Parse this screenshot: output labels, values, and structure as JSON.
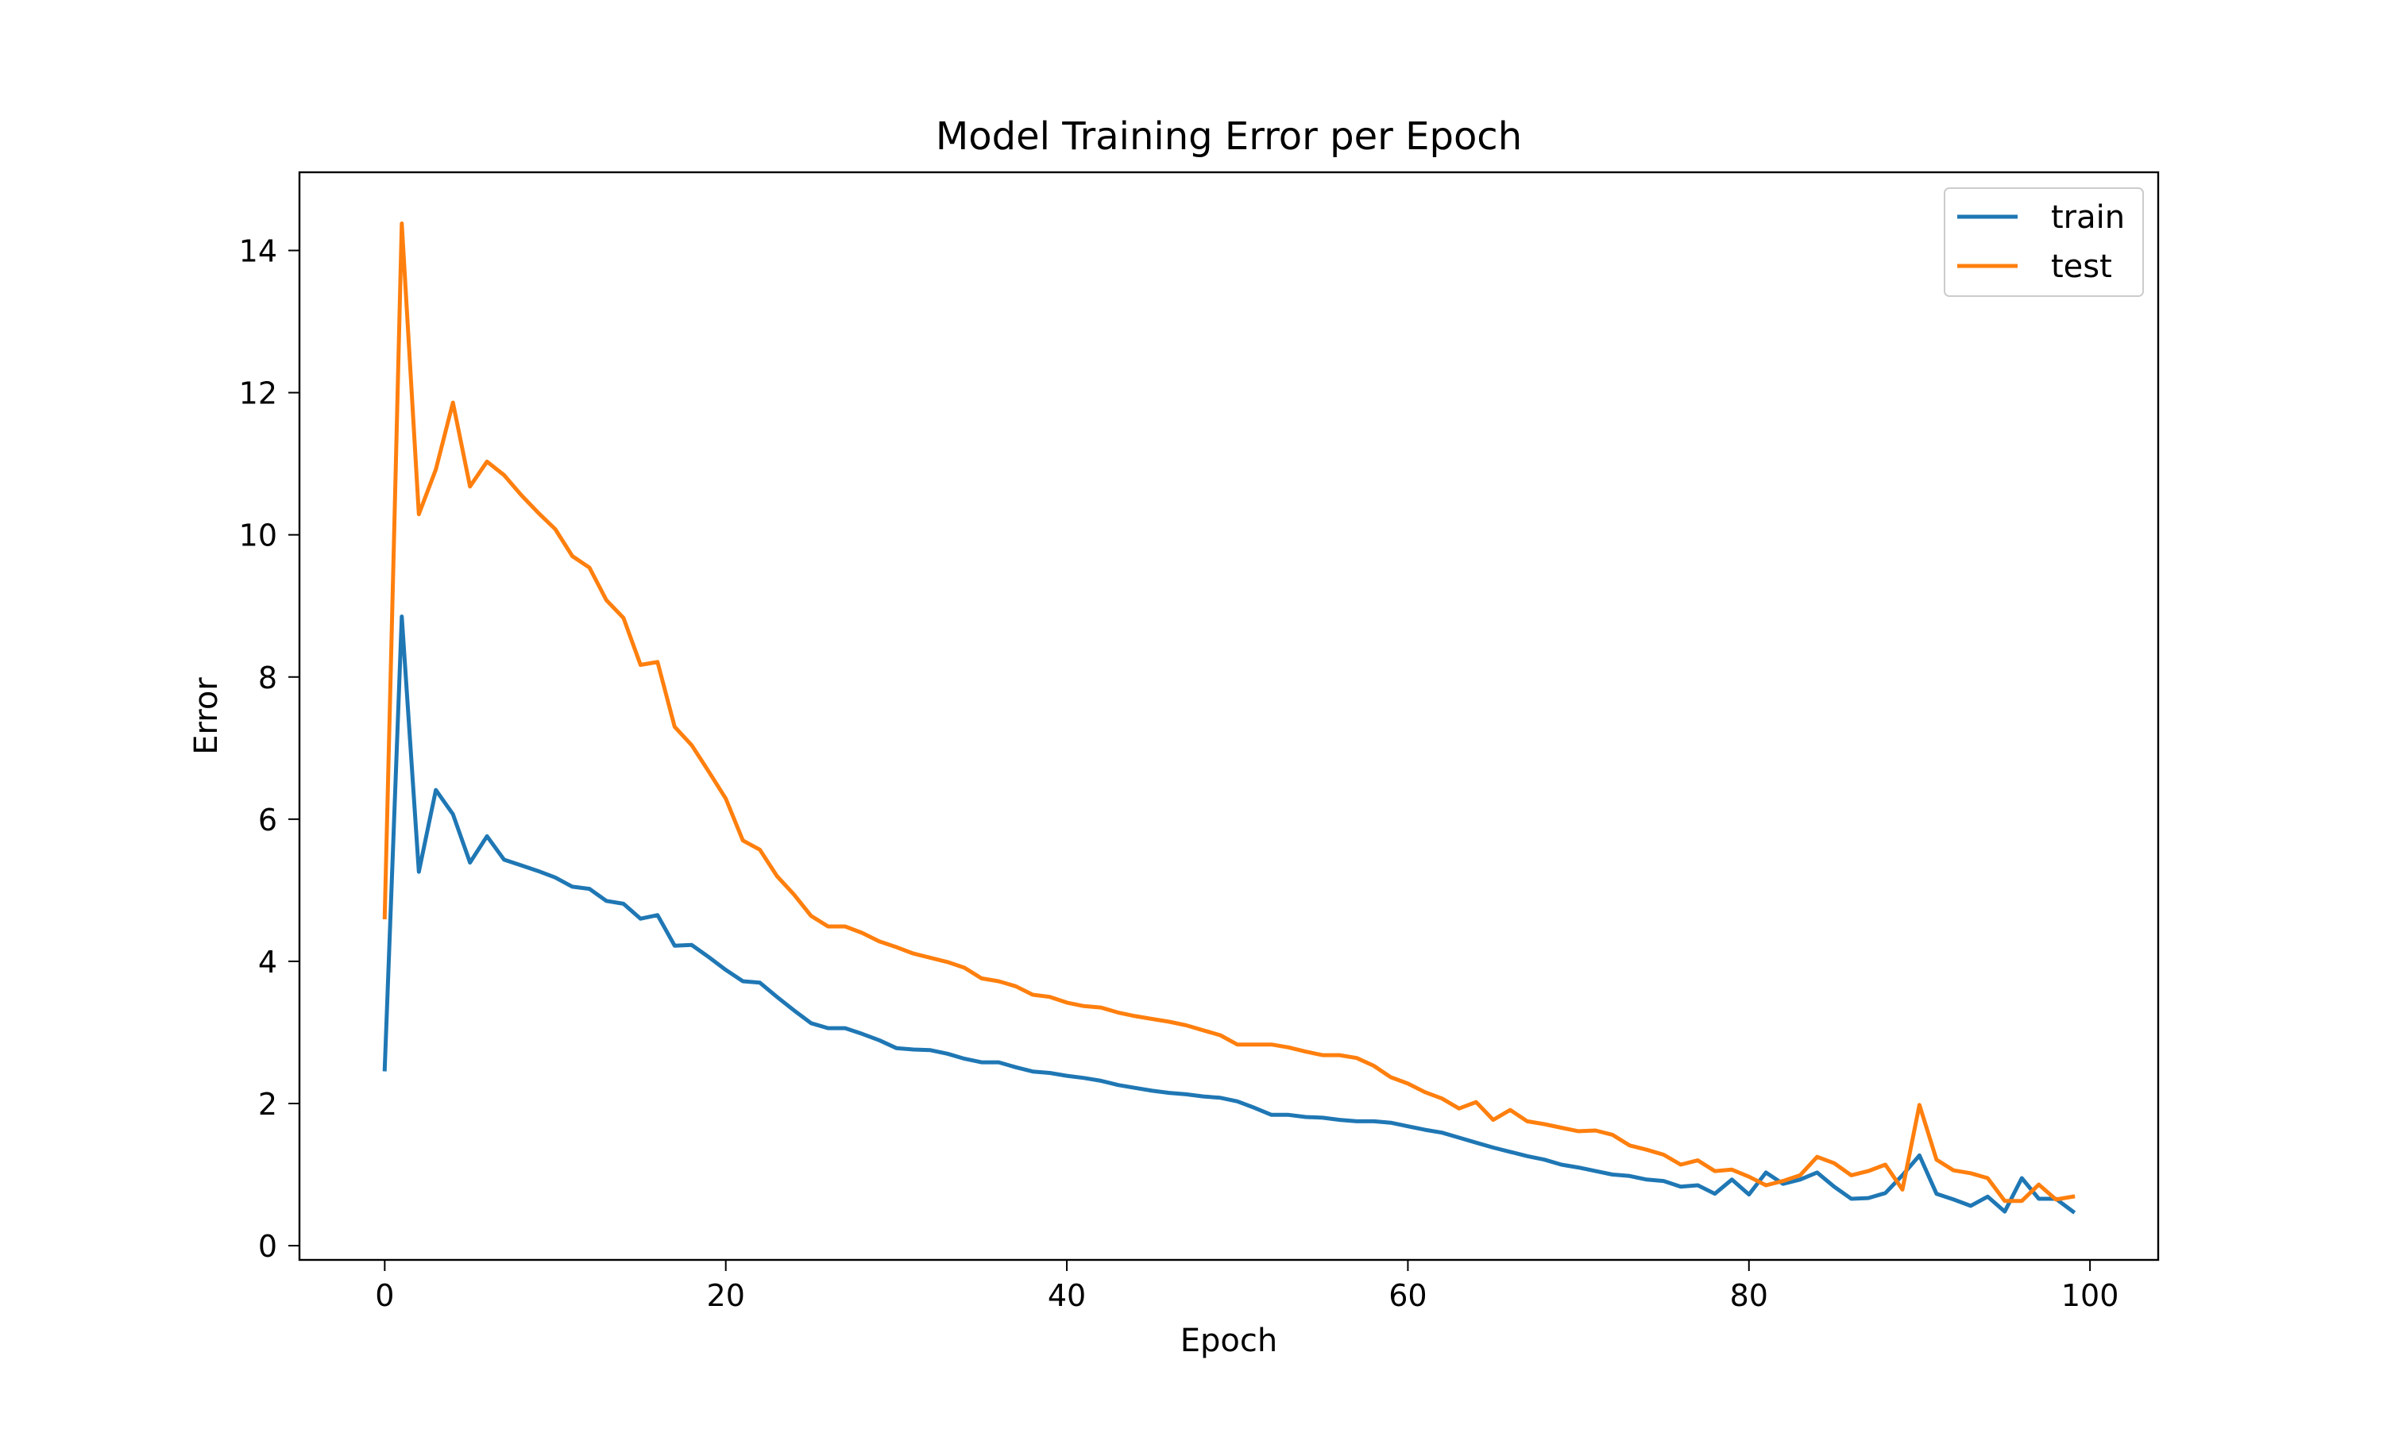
{
  "chart_data": {
    "type": "line",
    "title": "Model Training Error per Epoch",
    "xlabel": "Epoch",
    "ylabel": "Error",
    "xlim": [
      -5,
      104
    ],
    "ylim": [
      -0.2,
      15.1
    ],
    "xticks": [
      0,
      20,
      40,
      60,
      80,
      100
    ],
    "yticks": [
      0,
      2,
      4,
      6,
      8,
      10,
      12,
      14
    ],
    "grid": false,
    "legend_position": "top-right",
    "series": [
      {
        "name": "train",
        "color": "#1f77b4",
        "x": [
          0,
          1,
          2,
          3,
          4,
          5,
          6,
          7,
          8,
          9,
          10,
          11,
          12,
          13,
          14,
          15,
          16,
          17,
          18,
          19,
          20,
          21,
          22,
          23,
          24,
          25,
          26,
          27,
          28,
          29,
          30,
          31,
          32,
          33,
          34,
          35,
          36,
          37,
          38,
          39,
          40,
          41,
          42,
          43,
          44,
          45,
          46,
          47,
          48,
          49,
          50,
          51,
          52,
          53,
          54,
          55,
          56,
          57,
          58,
          59,
          60,
          61,
          62,
          63,
          64,
          65,
          66,
          67,
          68,
          69,
          70,
          71,
          72,
          73,
          74,
          75,
          76,
          77,
          78,
          79,
          80,
          81,
          82,
          83,
          84,
          85,
          86,
          87,
          88,
          89,
          90,
          91,
          92,
          93,
          94,
          95,
          96,
          97,
          98,
          99
        ],
        "values": [
          2.48,
          8.85,
          5.26,
          6.41,
          6.07,
          5.39,
          5.76,
          5.43,
          5.35,
          5.27,
          5.18,
          5.05,
          5.02,
          4.85,
          4.81,
          4.6,
          4.65,
          4.22,
          4.23,
          4.06,
          3.88,
          3.72,
          3.7,
          3.5,
          3.31,
          3.13,
          3.06,
          3.06,
          2.98,
          2.89,
          2.78,
          2.76,
          2.75,
          2.7,
          2.63,
          2.58,
          2.58,
          2.51,
          2.45,
          2.43,
          2.39,
          2.36,
          2.32,
          2.26,
          2.22,
          2.18,
          2.15,
          2.13,
          2.1,
          2.08,
          2.03,
          1.94,
          1.84,
          1.84,
          1.81,
          1.8,
          1.77,
          1.75,
          1.75,
          1.73,
          1.68,
          1.63,
          1.59,
          1.52,
          1.45,
          1.38,
          1.32,
          1.26,
          1.21,
          1.14,
          1.1,
          1.05,
          1.0,
          0.98,
          0.93,
          0.91,
          0.83,
          0.85,
          0.73,
          0.93,
          0.72,
          1.03,
          0.87,
          0.93,
          1.03,
          0.83,
          0.66,
          0.67,
          0.74,
          0.99,
          1.27,
          0.73,
          0.65,
          0.56,
          0.69,
          0.48,
          0.95,
          0.66,
          0.66,
          0.48
        ]
      },
      {
        "name": "test",
        "color": "#ff7f0e",
        "x": [
          0,
          1,
          2,
          3,
          4,
          5,
          6,
          7,
          8,
          9,
          10,
          11,
          12,
          13,
          14,
          15,
          16,
          17,
          18,
          19,
          20,
          21,
          22,
          23,
          24,
          25,
          26,
          27,
          28,
          29,
          30,
          31,
          32,
          33,
          34,
          35,
          36,
          37,
          38,
          39,
          40,
          41,
          42,
          43,
          44,
          45,
          46,
          47,
          48,
          49,
          50,
          51,
          52,
          53,
          54,
          55,
          56,
          57,
          58,
          59,
          60,
          61,
          62,
          63,
          64,
          65,
          66,
          67,
          68,
          69,
          70,
          71,
          72,
          73,
          74,
          75,
          76,
          77,
          78,
          79,
          80,
          81,
          82,
          83,
          84,
          85,
          86,
          87,
          88,
          89,
          90,
          91,
          92,
          93,
          94,
          95,
          96,
          97,
          98,
          99
        ],
        "values": [
          4.62,
          14.38,
          10.29,
          10.92,
          11.86,
          10.68,
          11.03,
          10.84,
          10.56,
          10.31,
          10.08,
          9.7,
          9.54,
          9.08,
          8.83,
          8.17,
          8.21,
          7.3,
          7.04,
          6.67,
          6.29,
          5.7,
          5.57,
          5.2,
          4.94,
          4.64,
          4.49,
          4.49,
          4.4,
          4.28,
          4.2,
          4.11,
          4.05,
          3.99,
          3.91,
          3.76,
          3.72,
          3.65,
          3.53,
          3.5,
          3.42,
          3.37,
          3.35,
          3.28,
          3.23,
          3.19,
          3.15,
          3.1,
          3.03,
          2.96,
          2.83,
          2.83,
          2.83,
          2.79,
          2.73,
          2.68,
          2.68,
          2.64,
          2.53,
          2.37,
          2.28,
          2.16,
          2.07,
          1.93,
          2.02,
          1.77,
          1.91,
          1.75,
          1.71,
          1.66,
          1.61,
          1.62,
          1.56,
          1.41,
          1.35,
          1.28,
          1.14,
          1.2,
          1.05,
          1.07,
          0.97,
          0.85,
          0.91,
          0.99,
          1.25,
          1.16,
          0.99,
          1.05,
          1.14,
          0.79,
          1.98,
          1.21,
          1.06,
          1.02,
          0.95,
          0.63,
          0.63,
          0.86,
          0.65,
          0.69
        ]
      }
    ]
  }
}
